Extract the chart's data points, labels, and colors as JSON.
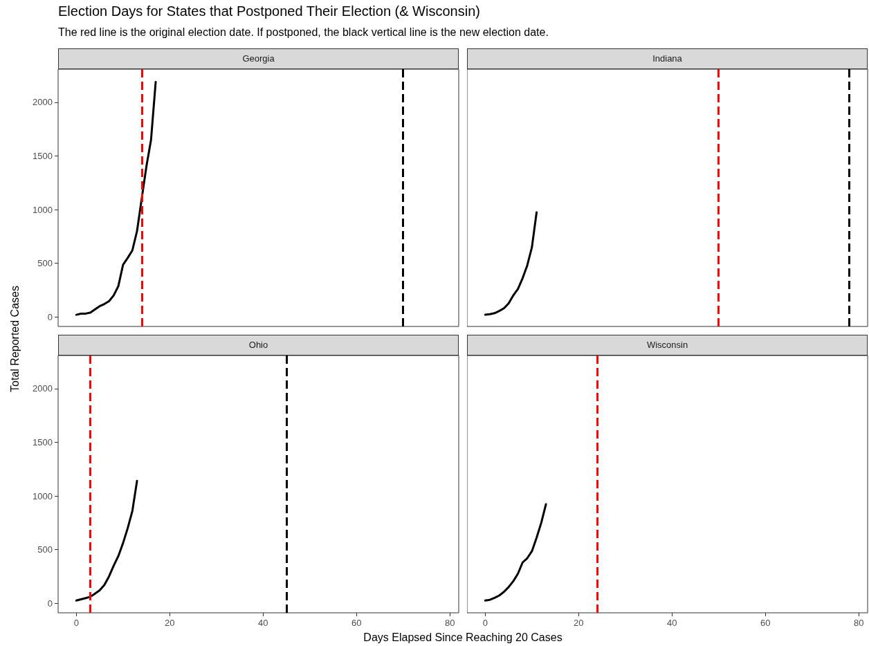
{
  "chart_data": [
    {
      "type": "line",
      "title": "Georgia",
      "annotations": [
        "Election Days for States that Postponed Their Election (& Wisconsin)",
        "The red line is the original election date. If postponed, the black vertical line is the new election date."
      ],
      "ylabel": "Total Reported Cases",
      "x": [
        0,
        1,
        2,
        3,
        4,
        5,
        6,
        7,
        8,
        9,
        10,
        11,
        12,
        13,
        14,
        15,
        16,
        17
      ],
      "series": [
        {
          "color": "#000000",
          "values": [
            20,
            30,
            31,
            40,
            70,
            100,
            120,
            146,
            200,
            287,
            485,
            550,
            620,
            800,
            1100,
            1400,
            1650,
            2190
          ]
        }
      ],
      "xlim": [
        -3.9,
        81.9
      ],
      "xticks": [
        0,
        20,
        40,
        60,
        80
      ],
      "ylim": [
        -89,
        2309
      ],
      "yticks": [
        0,
        500,
        1000,
        1500,
        2000
      ],
      "tick_labels": "y",
      "grid": false,
      "marker": "none",
      "line_style": "solid",
      "ref_lines": [
        {
          "axis": "x",
          "value": 14,
          "color": "#ff0000",
          "line_style": "dashed"
        },
        {
          "axis": "x",
          "value": 70,
          "color": "#000000",
          "line_style": "dashed"
        }
      ]
    },
    {
      "type": "line",
      "title": "Indiana",
      "x": [
        0,
        1,
        2,
        3,
        4,
        5,
        6,
        7,
        8,
        9,
        10,
        11
      ],
      "series": [
        {
          "color": "#000000",
          "values": [
            20,
            25,
            35,
            55,
            80,
            125,
            200,
            260,
            360,
            480,
            650,
            975
          ]
        }
      ],
      "xlim": [
        -3.9,
        81.9
      ],
      "xticks": [
        0,
        20,
        40,
        60,
        80
      ],
      "ylim": [
        -89,
        2309
      ],
      "yticks": [
        0,
        500,
        1000,
        1500,
        2000
      ],
      "tick_labels": false,
      "grid": false,
      "marker": "none",
      "line_style": "solid",
      "ref_lines": [
        {
          "axis": "x",
          "value": 50,
          "color": "#ff0000",
          "line_style": "dashed"
        },
        {
          "axis": "x",
          "value": 78,
          "color": "#000000",
          "line_style": "dashed"
        }
      ]
    },
    {
      "type": "line",
      "title": "Ohio",
      "xlabel": "Days Elapsed Since Reaching 20 Cases",
      "x": [
        0,
        1,
        2,
        3,
        4,
        5,
        6,
        7,
        8,
        9,
        10,
        11,
        12,
        13
      ],
      "series": [
        {
          "color": "#000000",
          "values": [
            25,
            37,
            48,
            60,
            90,
            120,
            170,
            250,
            350,
            440,
            560,
            700,
            860,
            1140
          ]
        }
      ],
      "xlim": [
        -3.9,
        81.9
      ],
      "xticks": [
        0,
        20,
        40,
        60,
        80
      ],
      "ylim": [
        -89,
        2309
      ],
      "yticks": [
        0,
        500,
        1000,
        1500,
        2000
      ],
      "grid": false,
      "marker": "none",
      "line_style": "solid",
      "ref_lines": [
        {
          "axis": "x",
          "value": 3,
          "color": "#ff0000",
          "line_style": "dashed"
        },
        {
          "axis": "x",
          "value": 45,
          "color": "#000000",
          "line_style": "dashed"
        }
      ]
    },
    {
      "type": "line",
      "title": "Wisconsin",
      "x": [
        0,
        1,
        2,
        3,
        4,
        5,
        6,
        7,
        8,
        9,
        10,
        11,
        12,
        13
      ],
      "series": [
        {
          "color": "#000000",
          "values": [
            25,
            32,
            50,
            72,
            106,
            150,
            205,
            275,
            380,
            420,
            485,
            610,
            750,
            923
          ]
        }
      ],
      "xlim": [
        -3.9,
        81.9
      ],
      "xticks": [
        0,
        20,
        40,
        60,
        80
      ],
      "ylim": [
        -89,
        2309
      ],
      "yticks": [
        0,
        500,
        1000,
        1500,
        2000
      ],
      "tick_labels": "x",
      "grid": false,
      "marker": "none",
      "line_style": "solid",
      "ref_lines": [
        {
          "axis": "x",
          "value": 24,
          "color": "#ff0000",
          "line_style": "dashed"
        }
      ]
    }
  ]
}
